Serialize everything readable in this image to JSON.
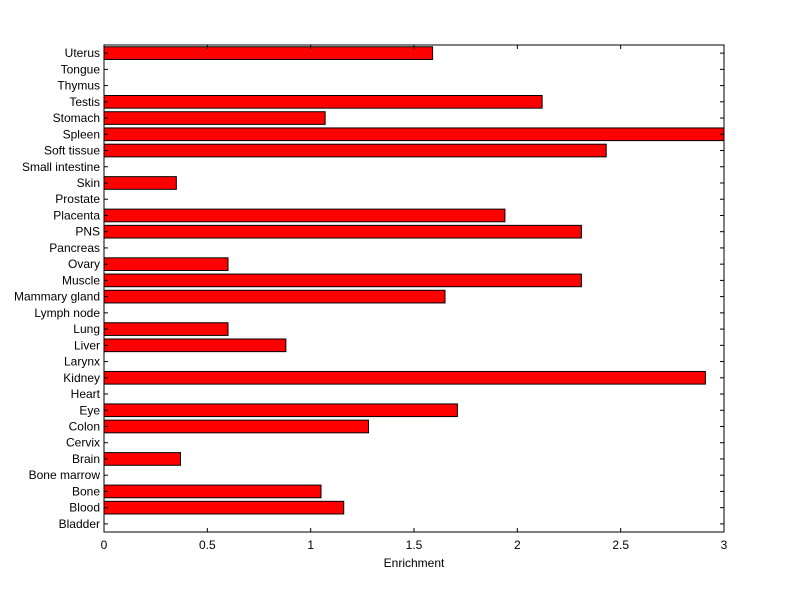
{
  "chart_data": {
    "type": "bar",
    "orientation": "horizontal",
    "title": "",
    "xlabel": "Enrichment",
    "ylabel": "",
    "xlim": [
      0,
      3
    ],
    "x_ticks": [
      "0",
      "0.5",
      "1",
      "1.5",
      "2",
      "2.5",
      "3"
    ],
    "grid": false,
    "legend": "none",
    "bar_color": "#ff0000",
    "bar_edge_color": "#000000",
    "categories": [
      "Bladder",
      "Blood",
      "Bone",
      "Bone marrow",
      "Brain",
      "Cervix",
      "Colon",
      "Eye",
      "Heart",
      "Kidney",
      "Larynx",
      "Liver",
      "Lung",
      "Lymph node",
      "Mammary gland",
      "Muscle",
      "Ovary",
      "Pancreas",
      "PNS",
      "Placenta",
      "Prostate",
      "Skin",
      "Small intestine",
      "Soft tissue",
      "Spleen",
      "Stomach",
      "Testis",
      "Thymus",
      "Tongue",
      "Uterus"
    ],
    "values": [
      0,
      1.16,
      1.05,
      0,
      0.37,
      0,
      1.28,
      1.71,
      0,
      2.91,
      0,
      0.88,
      0.6,
      0,
      1.65,
      2.31,
      0.6,
      0,
      2.31,
      1.94,
      0,
      0.35,
      0,
      2.43,
      3.0,
      1.07,
      2.12,
      0,
      0,
      1.59
    ]
  }
}
